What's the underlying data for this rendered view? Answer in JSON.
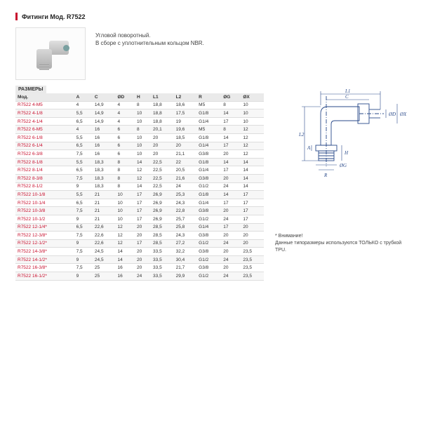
{
  "title": "Фитинги Мод. R7522",
  "desc_line1": "Угловой поворотный.",
  "desc_line2": "В сборе с уплотнительным кольцом NBR.",
  "sizes_label": "РАЗМЕРЫ",
  "note_title": "* Внимание!",
  "note_body": "Данные типоразмеры используются ТОЛЬКО с трубкой TPU.",
  "table": {
    "columns": [
      "Мод.",
      "A",
      "C",
      "ØD",
      "H",
      "L1",
      "L2",
      "R",
      "ØG",
      "ØX"
    ],
    "rows": [
      [
        "R7522 4-M5",
        "4",
        "14,9",
        "4",
        "8",
        "18,8",
        "18,6",
        "M5",
        "8",
        "10"
      ],
      [
        "R7522 4-1/8",
        "5,5",
        "14,9",
        "4",
        "10",
        "18,8",
        "17,5",
        "G1/8",
        "14",
        "10"
      ],
      [
        "R7522 4-1/4",
        "6,5",
        "14,9",
        "4",
        "10",
        "18,8",
        "19",
        "G1/4",
        "17",
        "10"
      ],
      [
        "R7522 6-M5",
        "4",
        "16",
        "6",
        "8",
        "20,1",
        "19,6",
        "M5",
        "8",
        "12"
      ],
      [
        "R7522 6-1/8",
        "5,5",
        "16",
        "6",
        "10",
        "20",
        "18,5",
        "G1/8",
        "14",
        "12"
      ],
      [
        "R7522 6-1/4",
        "6,5",
        "16",
        "6",
        "10",
        "20",
        "20",
        "G1/4",
        "17",
        "12"
      ],
      [
        "R7522 6-3/8",
        "7,5",
        "16",
        "6",
        "10",
        "20",
        "21,1",
        "G3/8",
        "20",
        "12"
      ],
      [
        "R7522 8-1/8",
        "5,5",
        "18,3",
        "8",
        "14",
        "22,5",
        "22",
        "G1/8",
        "14",
        "14"
      ],
      [
        "R7522 8-1/4",
        "6,5",
        "18,3",
        "8",
        "12",
        "22,5",
        "20,5",
        "G1/4",
        "17",
        "14"
      ],
      [
        "R7522 8-3/8",
        "7,5",
        "18,3",
        "8",
        "12",
        "22,5",
        "21,6",
        "G3/8",
        "20",
        "14"
      ],
      [
        "R7522 8-1/2",
        "9",
        "18,3",
        "8",
        "14",
        "22,5",
        "24",
        "G1/2",
        "24",
        "14"
      ],
      [
        "R7522 10-1/8",
        "5,5",
        "21",
        "10",
        "17",
        "26,9",
        "25,3",
        "G1/8",
        "14",
        "17"
      ],
      [
        "R7522 10-1/4",
        "6,5",
        "21",
        "10",
        "17",
        "26,9",
        "24,3",
        "G1/4",
        "17",
        "17"
      ],
      [
        "R7522 10-3/8",
        "7,5",
        "21",
        "10",
        "17",
        "26,9",
        "22,8",
        "G3/8",
        "20",
        "17"
      ],
      [
        "R7522 10-1/2",
        "9",
        "21",
        "10",
        "17",
        "26,9",
        "25,7",
        "G1/2",
        "24",
        "17"
      ],
      [
        "R7522 12-1/4*",
        "6,5",
        "22,6",
        "12",
        "20",
        "28,5",
        "25,8",
        "G1/4",
        "17",
        "20"
      ],
      [
        "R7522 12-3/8*",
        "7,5",
        "22,6",
        "12",
        "20",
        "28,5",
        "24,3",
        "G3/8",
        "20",
        "20"
      ],
      [
        "R7522 12-1/2*",
        "9",
        "22,6",
        "12",
        "17",
        "28,5",
        "27,2",
        "G1/2",
        "24",
        "20"
      ],
      [
        "R7522 14-3/8*",
        "7,5",
        "24,5",
        "14",
        "20",
        "33,5",
        "32,2",
        "G3/8",
        "20",
        "23,5"
      ],
      [
        "R7522 14-1/2*",
        "9",
        "24,5",
        "14",
        "20",
        "33,5",
        "30,4",
        "G1/2",
        "24",
        "23,5"
      ],
      [
        "R7522 16-3/8*",
        "7,5",
        "25",
        "16",
        "20",
        "33,5",
        "21,7",
        "G3/8",
        "20",
        "23,5"
      ],
      [
        "R7522 16-1/2*",
        "9",
        "25",
        "16",
        "24",
        "33,5",
        "29,9",
        "G1/2",
        "24",
        "23,5"
      ]
    ]
  }
}
